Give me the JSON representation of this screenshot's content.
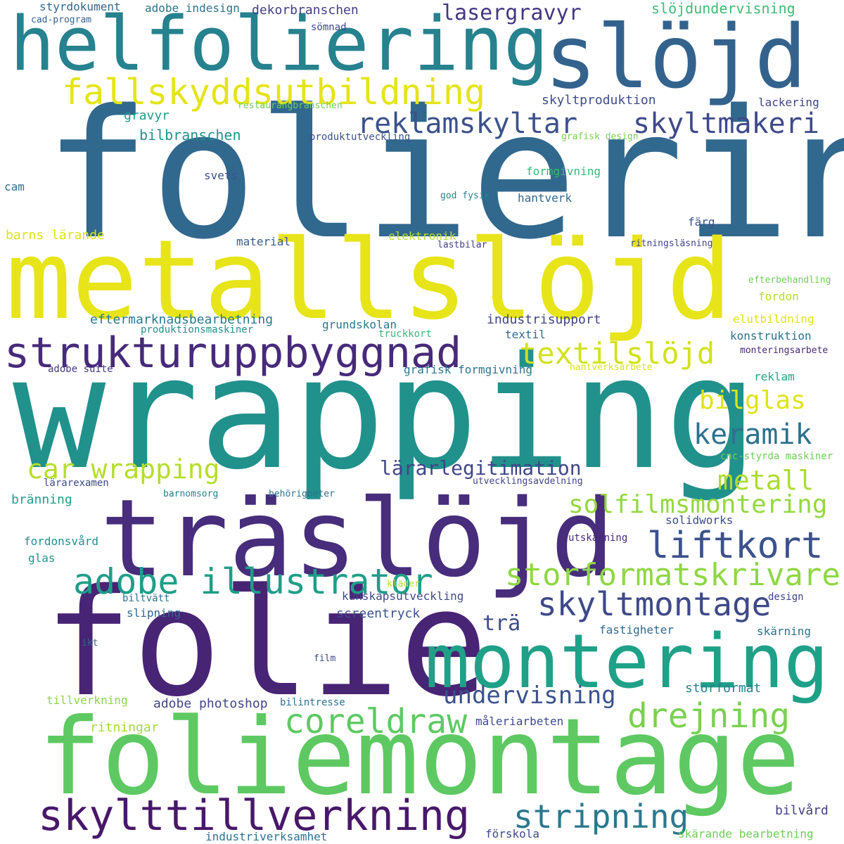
{
  "colors": {
    "background": "#ffffff",
    "palette": [
      "#440154",
      "#482878",
      "#3e4989",
      "#31688e",
      "#26828e",
      "#1f9e89",
      "#35b779",
      "#6ece58",
      "#b5de2b",
      "#fde725"
    ]
  },
  "words": [
    {
      "text": "foliering",
      "color": "#31688e"
    },
    {
      "text": "wrapping",
      "color": "#21918c"
    },
    {
      "text": "folie",
      "color": "#482475"
    },
    {
      "text": "foliemontage",
      "color": "#5ec962"
    },
    {
      "text": "metallslöjd",
      "color": "#e7e419"
    },
    {
      "text": "träslöjd",
      "color": "#472d7b"
    },
    {
      "text": "helfoliering",
      "color": "#26828e"
    },
    {
      "text": "slöjd",
      "color": "#33638d"
    },
    {
      "text": "montering",
      "color": "#1fa188"
    },
    {
      "text": "strukturuppbyggnad",
      "color": "#472a7a"
    },
    {
      "text": "skylttillverkning",
      "color": "#48186a"
    },
    {
      "text": "fallskyddsutbildning",
      "color": "#e5e419"
    },
    {
      "text": "adobe illustrator",
      "color": "#1f9e89"
    },
    {
      "text": "liftkort",
      "color": "#3b528b"
    },
    {
      "text": "storformatskrivare",
      "color": "#8fd744"
    },
    {
      "text": "skyltmontage",
      "color": "#3e4989"
    },
    {
      "text": "coreldraw",
      "color": "#5ec962"
    },
    {
      "text": "drejning",
      "color": "#7ad151"
    },
    {
      "text": "stripning",
      "color": "#2a788e"
    },
    {
      "text": "textilslöjd",
      "color": "#d2e21b"
    },
    {
      "text": "reklamskyltar",
      "color": "#3b528b"
    },
    {
      "text": "skyltmakeri",
      "color": "#3e4a89"
    },
    {
      "text": "car wrapping",
      "color": "#b5de2b"
    },
    {
      "text": "solfilmsmontering",
      "color": "#95d840"
    },
    {
      "text": "keramik",
      "color": "#2c728e"
    },
    {
      "text": "undervisning",
      "color": "#3b528b"
    },
    {
      "text": "metall",
      "color": "#addc30"
    },
    {
      "text": "bilglas",
      "color": "#dfe318"
    },
    {
      "text": "lärarlegitimation",
      "color": "#404688"
    },
    {
      "text": "lasergravyr",
      "color": "#453781"
    },
    {
      "text": "trä",
      "color": "#3e4c8a"
    },
    {
      "text": "styrdokument",
      "color": "#31688e"
    },
    {
      "text": "adobe indesign",
      "color": "#2c728e"
    },
    {
      "text": "dekorbranschen",
      "color": "#433e85"
    },
    {
      "text": "slöjdundervisning",
      "color": "#3dbc74"
    },
    {
      "text": "cad-program",
      "color": "#33638d"
    },
    {
      "text": "sömnad",
      "color": "#404688"
    },
    {
      "text": "skyltproduktion",
      "color": "#3e4c8a"
    },
    {
      "text": "lackering",
      "color": "#414487"
    },
    {
      "text": "restaurangbranschen",
      "color": "#6ece58"
    },
    {
      "text": "gravyr",
      "color": "#1f9e89"
    },
    {
      "text": "bilbranschen",
      "color": "#21918c"
    },
    {
      "text": "produktutveckling",
      "color": "#3b528b"
    },
    {
      "text": "grafisk design",
      "color": "#7ad151"
    },
    {
      "text": "formgivning",
      "color": "#35b779"
    },
    {
      "text": "svets",
      "color": "#3b528b"
    },
    {
      "text": "cam",
      "color": "#2c728e"
    },
    {
      "text": "god fysik",
      "color": "#26828e"
    },
    {
      "text": "hantverk",
      "color": "#31688e"
    },
    {
      "text": "barns lärande",
      "color": "#dfe318"
    },
    {
      "text": "elektronik",
      "color": "#b8de29"
    },
    {
      "text": "färg",
      "color": "#3b528b"
    },
    {
      "text": "material",
      "color": "#365c8d"
    },
    {
      "text": "lastbilar",
      "color": "#433e85"
    },
    {
      "text": "ritningsläsning",
      "color": "#404688"
    },
    {
      "text": "efterbehandling",
      "color": "#6ece58"
    },
    {
      "text": "fordon",
      "color": "#b5de2b"
    },
    {
      "text": "eftermarknadsbearbetning",
      "color": "#2a788e"
    },
    {
      "text": "industrisupport",
      "color": "#414487"
    },
    {
      "text": "elutbildning",
      "color": "#dfe318"
    },
    {
      "text": "produktionsmaskiner",
      "color": "#21918c"
    },
    {
      "text": "grundskolan",
      "color": "#2a788e"
    },
    {
      "text": "textil",
      "color": "#31688e"
    },
    {
      "text": "truckkort",
      "color": "#35b779"
    },
    {
      "text": "konstruktion",
      "color": "#2c728e"
    },
    {
      "text": "monteringsarbete",
      "color": "#482878"
    },
    {
      "text": "adobe suite",
      "color": "#443a83"
    },
    {
      "text": "grafisk formgivning",
      "color": "#2a788e"
    },
    {
      "text": "hantverksarbete",
      "color": "#d8e219"
    },
    {
      "text": "reklam",
      "color": "#22a884"
    },
    {
      "text": "cnc-styrda maskiner",
      "color": "#6ece58"
    },
    {
      "text": "lärarexamen",
      "color": "#3e4989"
    },
    {
      "text": "barnomsorg",
      "color": "#277f8e"
    },
    {
      "text": "behörigheter",
      "color": "#2c728e"
    },
    {
      "text": "utvecklingsavdelning",
      "color": "#414487"
    },
    {
      "text": "bränning",
      "color": "#1f9e89"
    },
    {
      "text": "solidworks",
      "color": "#3e4c8a"
    },
    {
      "text": "fordonsvård",
      "color": "#21918c"
    },
    {
      "text": "utskärning",
      "color": "#482878"
    },
    {
      "text": "glas",
      "color": "#21918c"
    },
    {
      "text": "kläder",
      "color": "#b5de2b"
    },
    {
      "text": "biltvätt",
      "color": "#2c728e"
    },
    {
      "text": "kunskapsutveckling",
      "color": "#3e4a89"
    },
    {
      "text": "design",
      "color": "#404688"
    },
    {
      "text": "slipning",
      "color": "#31688e"
    },
    {
      "text": "screentryck",
      "color": "#3b528b"
    },
    {
      "text": "fastigheter",
      "color": "#31688e"
    },
    {
      "text": "skärning",
      "color": "#2c728e"
    },
    {
      "text": "ikt",
      "color": "#31688e"
    },
    {
      "text": "film",
      "color": "#3e4989"
    },
    {
      "text": "tillverkning",
      "color": "#8fd744"
    },
    {
      "text": "adobe photoshop",
      "color": "#404688"
    },
    {
      "text": "bilintresse",
      "color": "#2c728e"
    },
    {
      "text": "storformat",
      "color": "#277f8e"
    },
    {
      "text": "ritningar",
      "color": "#a2da37"
    },
    {
      "text": "måleriarbeten",
      "color": "#3e4989"
    },
    {
      "text": "bilvård",
      "color": "#433e85"
    },
    {
      "text": "industriverksamhet",
      "color": "#2c728e"
    },
    {
      "text": "förskola",
      "color": "#3e4989"
    },
    {
      "text": "skärande bearbetning",
      "color": "#6ece58"
    }
  ]
}
